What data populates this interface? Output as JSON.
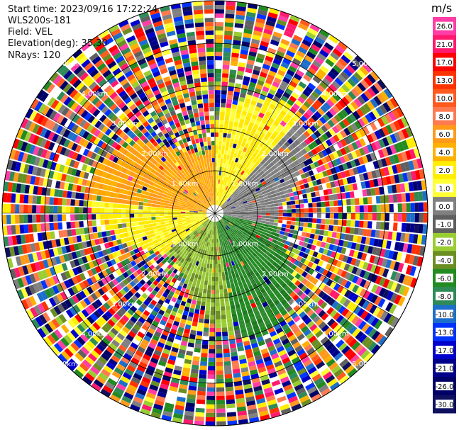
{
  "header": {
    "start_time": "Start time: 2023/09/16 17:22:24",
    "instrument": "WLS200s-181",
    "field": "Field: VEL",
    "elevation": "Elevation(deg): 35.30",
    "nrays": "NRays: 120"
  },
  "colorbar": {
    "unit": "m/s",
    "ticks": [
      "26.0",
      "21.0",
      "17.0",
      "13.0",
      "10.0",
      "8.0",
      "6.0",
      "4.0",
      "2.0",
      "1.0",
      "0.0",
      "-1.0",
      "-2.0",
      "-4.0",
      "-6.0",
      "-8.0",
      "-10.0",
      "-13.0",
      "-17.0",
      "-21.0",
      "-26.0",
      "-30.0"
    ],
    "colors": [
      "#ff3da6",
      "#ff1a6e",
      "#ff0000",
      "#ff3300",
      "#ff5a1f",
      "#ff7a50",
      "#ff9a1a",
      "#ffb000",
      "#ffee00",
      "#ffff33",
      "#808080",
      "#606060",
      "#9acd32",
      "#6b8e23",
      "#228b22",
      "#2e8b57",
      "#1e6fcc",
      "#0033ff",
      "#0000cc",
      "#00008b",
      "#000066",
      "#101060"
    ]
  },
  "chart_data": {
    "type": "heatmap",
    "projection": "polar-ppi",
    "field": "VEL",
    "units": "m/s",
    "nrays": 120,
    "range_ring_labels": [
      "1.00km",
      "2.00km",
      "3.00km",
      "4.00km",
      "5.00km"
    ],
    "max_range_km": 5.0,
    "near_field_pattern": [
      {
        "az_from": 0,
        "az_to": 40,
        "class": "yellow",
        "note": "positive ~2 m/s"
      },
      {
        "az_from": 40,
        "az_to": 100,
        "class": "gray",
        "note": "~0 m/s"
      },
      {
        "az_from": 100,
        "az_to": 170,
        "class": "green",
        "note": "negative ~-4 m/s"
      },
      {
        "az_from": 170,
        "az_to": 230,
        "class": "olive",
        "note": "~-2 m/s"
      },
      {
        "az_from": 230,
        "az_to": 275,
        "class": "yellow",
        "note": "positive ~2 m/s"
      },
      {
        "az_from": 275,
        "az_to": 360,
        "class": "orange",
        "note": "positive ~6 m/s"
      }
    ],
    "noise_beyond_km": 2.7,
    "colorbar_ticks": [
      26.0,
      21.0,
      17.0,
      13.0,
      10.0,
      8.0,
      6.0,
      4.0,
      2.0,
      1.0,
      0.0,
      -1.0,
      -2.0,
      -4.0,
      -6.0,
      -8.0,
      -10.0,
      -13.0,
      -17.0,
      -21.0,
      -26.0,
      -30.0
    ]
  }
}
